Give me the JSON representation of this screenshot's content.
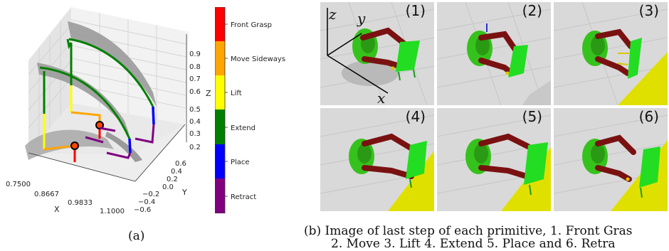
{
  "figure_a": {
    "caption": "(a)",
    "x_axis": {
      "label": "X",
      "ticks": [
        "0.7500",
        "0.8667",
        "0.9833",
        "1.1000"
      ]
    },
    "y_axis": {
      "label": "Y",
      "ticks": [
        "−0.6",
        "−0.4",
        "−0.2",
        "0.0",
        "0.2",
        "0.4",
        "0.6"
      ]
    },
    "z_axis": {
      "label": "Z",
      "ticks": [
        "0.2",
        "0.3",
        "0.4",
        "0.5",
        "0.6",
        "0.7",
        "0.8",
        "0.9"
      ]
    },
    "legend": [
      {
        "label": "Front Grasp",
        "color": "#ff0000"
      },
      {
        "label": "Move Sideways",
        "color": "#ffa500"
      },
      {
        "label": "Lift",
        "color": "#ffff00"
      },
      {
        "label": "Extend",
        "color": "#008000"
      },
      {
        "label": "Place",
        "color": "#0000ff"
      },
      {
        "label": "Retract",
        "color": "#800080"
      }
    ]
  },
  "figure_b": {
    "axes": {
      "z": "z",
      "y": "y",
      "x": "x"
    },
    "tiles": [
      {
        "num": "(1)"
      },
      {
        "num": "(2)"
      },
      {
        "num": "(3)"
      },
      {
        "num": "(4)"
      },
      {
        "num": "(5)"
      },
      {
        "num": "(6)"
      }
    ],
    "caption_line1": "(b) Image of last step of each primitive, 1. Front Gras",
    "caption_line2": "2. Move  3. Lift  4. Extend  5. Place  and 6. Retra"
  }
}
